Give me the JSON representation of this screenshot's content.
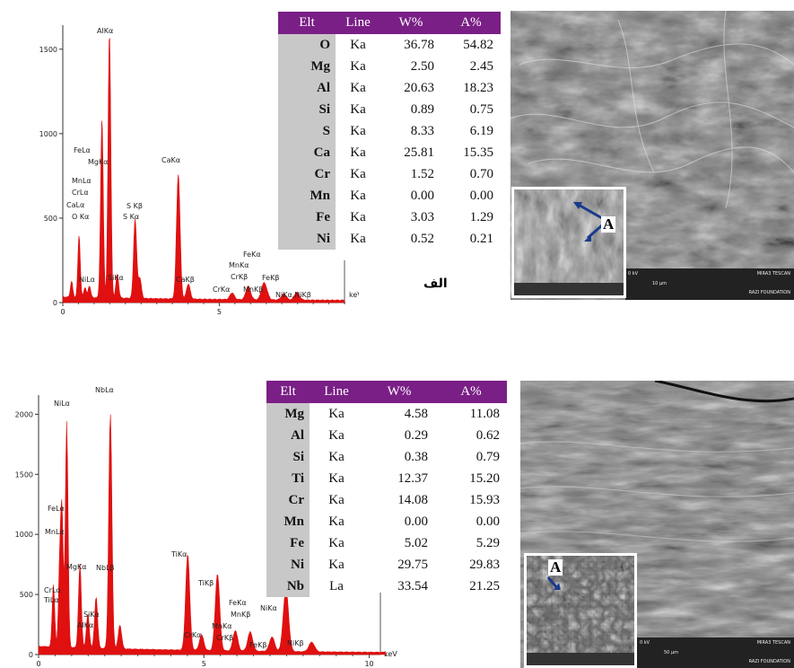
{
  "spectrum_top": {
    "axis_unit": "keV",
    "y_ticks": [
      {
        "v": 0,
        "label": "0"
      },
      {
        "v": 500,
        "label": "500"
      },
      {
        "v": 1000,
        "label": "1000"
      },
      {
        "v": 1500,
        "label": "1500"
      }
    ],
    "x_ticks": [
      {
        "v": 0,
        "label": "0"
      },
      {
        "v": 5,
        "label": "5"
      }
    ],
    "peak_labels": [
      "AlKα",
      "FeLα",
      "MgKα",
      "MnLα",
      "CrLα",
      "CaLα",
      "O Kα",
      "S Kβ",
      "S Kα",
      "CaKα",
      "NiLα",
      "SiKα",
      "CaKβ",
      "FeKα",
      "MnKα",
      "CrKβ",
      "CrKα",
      "MnKβ",
      "FeKβ",
      "NiKα,NiKβ"
    ]
  },
  "spectrum_bottom": {
    "axis_unit": "keV",
    "y_ticks": [
      {
        "v": 0,
        "label": "0"
      },
      {
        "v": 500,
        "label": "500"
      },
      {
        "v": 1000,
        "label": "1000"
      },
      {
        "v": 1500,
        "label": "1500"
      },
      {
        "v": 2000,
        "label": "2000"
      }
    ],
    "x_ticks": [
      {
        "v": 0,
        "label": "0"
      },
      {
        "v": 5,
        "label": "5"
      },
      {
        "v": 10,
        "label": "10"
      }
    ],
    "peak_labels": [
      "NiLα",
      "NbLα",
      "FeLα",
      "MnLα",
      "MgKα",
      "NbLβ",
      "SiKα",
      "AlKα",
      "CrLα",
      "TiLα",
      "TiKα",
      "CrKα",
      "TiKβ",
      "FeKα",
      "MnKβ",
      "MnKα",
      "CrKβ",
      "FeKβ",
      "NiKα",
      "NiKβ"
    ]
  },
  "chart_data": [
    {
      "type": "line",
      "xlabel": "keV",
      "xlim": [
        0,
        9
      ],
      "ylim": [
        0,
        1600
      ],
      "peaks_x": [
        0.28,
        0.52,
        0.71,
        0.85,
        1.25,
        1.49,
        1.74,
        2.31,
        2.46,
        3.69,
        4.01,
        5.41,
        5.9,
        5.95,
        6.4,
        6.49,
        7.06,
        7.48
      ],
      "peaks_y": [
        95,
        370,
        60,
        70,
        1060,
        1580,
        140,
        470,
        120,
        740,
        90,
        40,
        45,
        40,
        70,
        50,
        35,
        45
      ],
      "background_y": 25
    },
    {
      "type": "line",
      "xlabel": "keV",
      "xlim": [
        0,
        10.5
      ],
      "ylim": [
        0,
        2100
      ],
      "peaks_x": [
        0.45,
        0.64,
        0.71,
        0.85,
        1.25,
        1.49,
        1.74,
        2.17,
        2.46,
        4.51,
        4.93,
        5.41,
        5.95,
        6.4,
        7.06,
        7.48,
        8.26
      ],
      "peaks_y": [
        520,
        640,
        1070,
        1880,
        700,
        280,
        430,
        1960,
        200,
        800,
        130,
        640,
        170,
        160,
        120,
        520,
        80
      ],
      "background_y": 60
    }
  ],
  "table_top": {
    "headers": [
      "Elt",
      "Line",
      "W%",
      "A%"
    ],
    "rows": [
      [
        "O",
        "Ka",
        "36.78",
        "54.82"
      ],
      [
        "Mg",
        "Ka",
        "2.50",
        "2.45"
      ],
      [
        "Al",
        "Ka",
        "20.63",
        "18.23"
      ],
      [
        "Si",
        "Ka",
        "0.89",
        "0.75"
      ],
      [
        "S",
        "Ka",
        "8.33",
        "6.19"
      ],
      [
        "Ca",
        "Ka",
        "25.81",
        "15.35"
      ],
      [
        "Cr",
        "Ka",
        "1.52",
        "0.70"
      ],
      [
        "Mn",
        "Ka",
        "0.00",
        "0.00"
      ],
      [
        "Fe",
        "Ka",
        "3.03",
        "1.29"
      ],
      [
        "Ni",
        "Ka",
        "0.52",
        "0.21"
      ]
    ]
  },
  "table_bottom": {
    "headers": [
      "Elt",
      "Line",
      "W%",
      "A%"
    ],
    "rows": [
      [
        "Mg",
        "Ka",
        "4.58",
        "11.08"
      ],
      [
        "Al",
        "Ka",
        "0.29",
        "0.62"
      ],
      [
        "Si",
        "Ka",
        "0.38",
        "0.79"
      ],
      [
        "Ti",
        "Ka",
        "12.37",
        "15.20"
      ],
      [
        "Cr",
        "Ka",
        "14.08",
        "15.93"
      ],
      [
        "Mn",
        "Ka",
        "0.00",
        "0.00"
      ],
      [
        "Fe",
        "Ka",
        "5.02",
        "5.29"
      ],
      [
        "Ni",
        "Ka",
        "29.75",
        "29.83"
      ],
      [
        "Nb",
        "La",
        "33.54",
        "21.25"
      ]
    ]
  },
  "label_top": "الف",
  "sem_top": {
    "inset_label": "A",
    "scale_text": "10 μm",
    "footer_text": "MIRA3 TESCAN",
    "foundation_text": "RAZI FOUNDATION",
    "kv_text": "0 kV"
  },
  "sem_bottom": {
    "inset_label": "A",
    "scale_text": "50 μm",
    "footer_text": "MIRA3 TESCAN",
    "foundation_text": "RAZI FOUNDATION",
    "kv_text": "0 kV"
  },
  "colors": {
    "spectrum_fill": "#e01010",
    "header_bg": "#7a1f86",
    "elt_bg": "#c8c8c8",
    "arrow": "#1a3a8a"
  }
}
